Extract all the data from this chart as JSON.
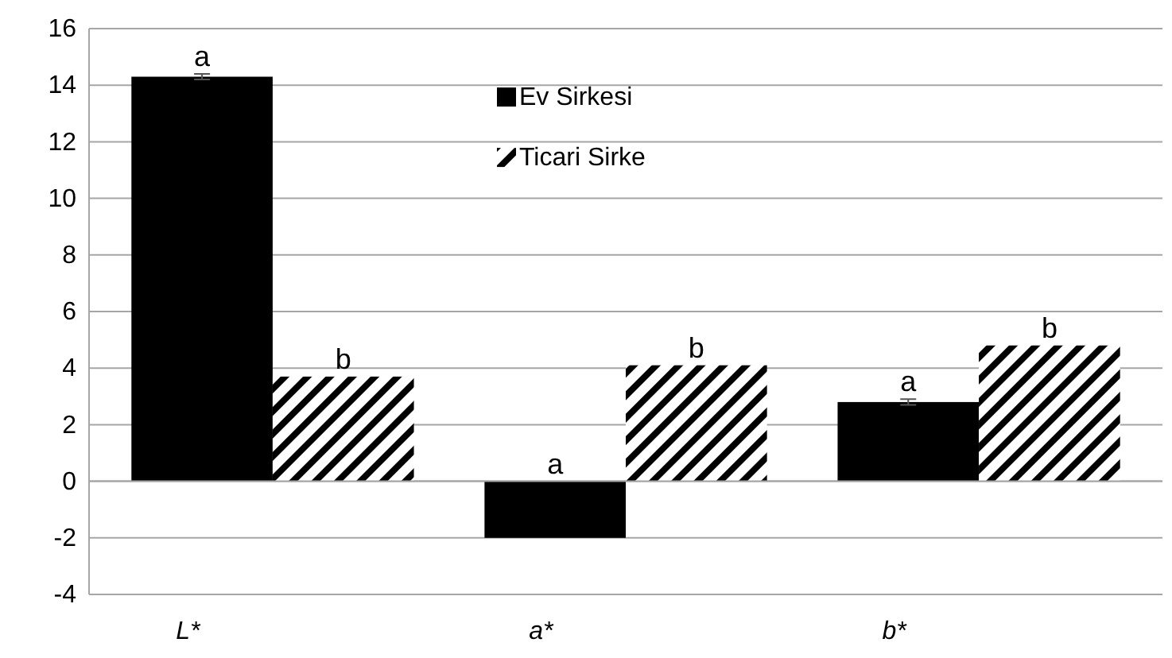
{
  "chart_data": {
    "type": "bar",
    "categories": [
      "L*",
      "a*",
      "b*"
    ],
    "series": [
      {
        "name": "Ev Sirkesi",
        "color": "#000000",
        "values": [
          14.3,
          -2.0,
          2.8
        ],
        "errors": [
          0.1,
          null,
          0.1
        ]
      },
      {
        "name": "Ticari Sirke",
        "color": "#000000",
        "values": [
          3.7,
          4.1,
          4.8
        ]
      }
    ],
    "ylim": [
      -4,
      16
    ],
    "yticks": [
      -4,
      -2,
      0,
      2,
      4,
      6,
      8,
      10,
      12,
      14,
      16
    ],
    "grid": "y",
    "legend": "top",
    "annotations": [
      "a",
      "b",
      "a",
      "b",
      "a",
      "b"
    ]
  }
}
